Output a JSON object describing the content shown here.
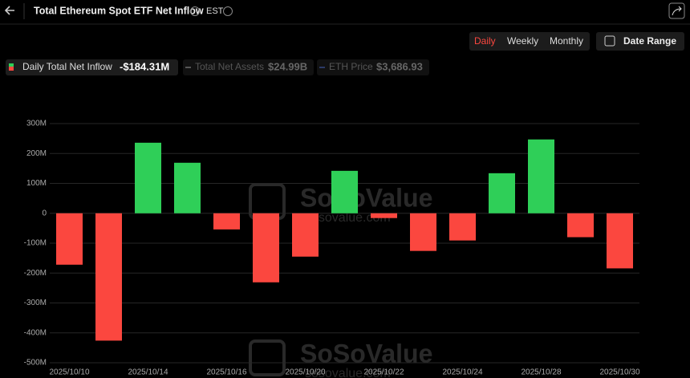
{
  "header": {
    "title": "Total Ethereum Spot ETF Net Inflow",
    "timezone": "EST"
  },
  "controls": {
    "periods": [
      "Daily",
      "Weekly",
      "Monthly"
    ],
    "date_range": "Date Range"
  },
  "legend": [
    {
      "name": "Daily Total Net Inflow",
      "value": "-$184.31M"
    },
    {
      "name": "Total Net Assets",
      "value": "$24.99B"
    },
    {
      "name": "ETH Price",
      "value": "$3,686.93"
    }
  ],
  "watermark": {
    "brand": "SoSoValue",
    "site": "sosovalue.com"
  },
  "chart_data": {
    "type": "bar",
    "categories": [
      "2025/10/10",
      null,
      "2025/10/14",
      null,
      "2025/10/16",
      null,
      "2025/10/20",
      null,
      "2025/10/22",
      null,
      "2025/10/24",
      null,
      "2025/10/28",
      null,
      "2025/10/30"
    ],
    "series": [
      {
        "name": "Daily Total Net Inflow",
        "values": [
          -172,
          -426,
          236,
          169,
          -54,
          -231,
          -145,
          142,
          -16,
          -126,
          -91,
          134,
          247,
          -80,
          -184.31
        ]
      }
    ],
    "positive_color": "#2fcf58",
    "negative_color": "#fb473f",
    "ylim": [
      -500,
      300
    ],
    "yticks": [
      {
        "value": -500,
        "label": "-500M"
      },
      {
        "value": -400,
        "label": "-400M"
      },
      {
        "value": -300,
        "label": "-300M"
      },
      {
        "value": -200,
        "label": "-200M"
      },
      {
        "value": -100,
        "label": "-100M"
      },
      0,
      {
        "value": 100,
        "label": "100M"
      },
      {
        "value": 200,
        "label": "200M"
      },
      {
        "value": 300,
        "label": "300M"
      }
    ],
    "grid": true
  }
}
